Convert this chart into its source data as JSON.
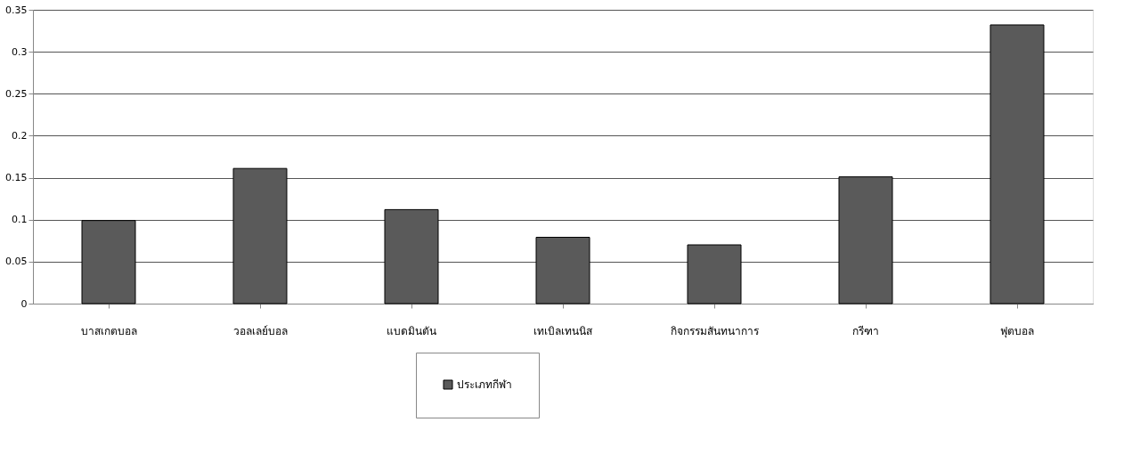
{
  "chart_data": {
    "type": "bar",
    "categories": [
      "บาสเกตบอล",
      "วอลเลย์บอล",
      "แบดมินตัน",
      "เทเบิลเทนนิส",
      "กิจกรรมสันทนาการ",
      "กรีฑา",
      "ฟุตบอล"
    ],
    "series": [
      {
        "name": "ประเภทกีฬา",
        "color": "#5a5a5a",
        "values": [
          0.099,
          0.161,
          0.112,
          0.079,
          0.07,
          0.151,
          0.332
        ]
      }
    ],
    "ylim": [
      0,
      0.35
    ],
    "yticks": [
      0,
      0.05,
      0.1,
      0.15,
      0.2,
      0.25,
      0.3,
      0.35
    ],
    "grid": "y",
    "legend": "bottom"
  }
}
